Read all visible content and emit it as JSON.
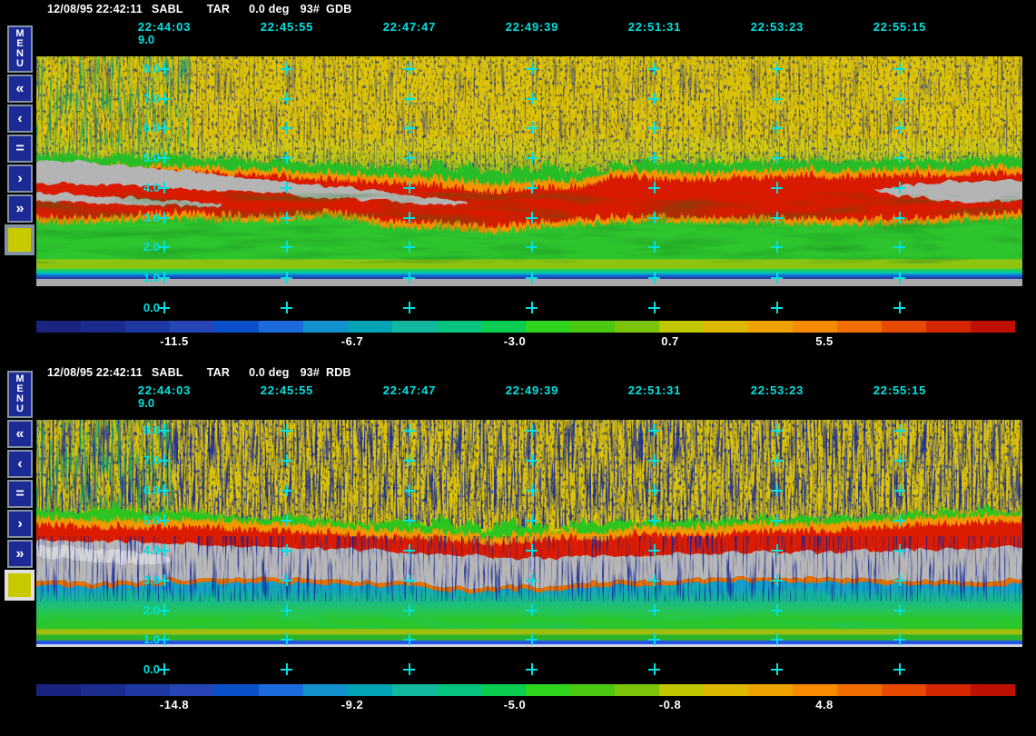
{
  "window": {
    "background": "#000000"
  },
  "grid_cross_color": "#00E0E0",
  "panels": [
    {
      "header": {
        "datetime": "12/08/95 22:42:11",
        "instrument": "SABL",
        "mode": "TAR",
        "angle": "0.0 deg",
        "shots": "93#",
        "channel": "GDB"
      },
      "time_labels": [
        "22:44:03",
        "22:45:55",
        "22:47:47",
        "22:49:39",
        "22:51:31",
        "22:53:23",
        "22:55:15"
      ],
      "altitude_top": "9.0",
      "altitude_labels": [
        "8.0",
        "7.0",
        "6.0",
        "5.0",
        "4.0",
        "3.0",
        "2.0",
        "1.0",
        "0.0"
      ],
      "sidebar": {
        "menu": "MENU",
        "rewind": "«",
        "back": "‹",
        "pause": "=",
        "forward": "›",
        "fast_forward": "»",
        "swatch_color": "#C9C900",
        "swatch_border": "#8493A4"
      },
      "colorbar": {
        "tick_labels": [
          "-11.5",
          "-6.7",
          "-3.0",
          "0.7",
          "5.5"
        ],
        "segments": [
          "#1A2380",
          "#1B2C8E",
          "#1D38A2",
          "#2644B4",
          "#0A50C8",
          "#1C6ADC",
          "#1292CC",
          "#02A4B6",
          "#12B89E",
          "#04C47E",
          "#0ACC50",
          "#2ED41E",
          "#4CC812",
          "#7CC40A",
          "#C0C600",
          "#DCB800",
          "#EEA200",
          "#F68A00",
          "#F06E00",
          "#E64A00",
          "#D42600",
          "#BE1000"
        ]
      }
    },
    {
      "header": {
        "datetime": "12/08/95 22:42:11",
        "instrument": "SABL",
        "mode": "TAR",
        "angle": "0.0 deg",
        "shots": "93#",
        "channel": "RDB"
      },
      "time_labels": [
        "22:44:03",
        "22:45:55",
        "22:47:47",
        "22:49:39",
        "22:51:31",
        "22:53:23",
        "22:55:15"
      ],
      "altitude_top": "9.0",
      "altitude_labels": [
        "8.0",
        "7.0",
        "6.0",
        "5.0",
        "4.0",
        "3.0",
        "2.0",
        "1.0",
        "0.0"
      ],
      "sidebar": {
        "menu": "MENU",
        "rewind": "«",
        "back": "‹",
        "pause": "=",
        "forward": "›",
        "fast_forward": "»",
        "swatch_color": "#C9C900",
        "swatch_border": "#E0E0E0"
      },
      "colorbar": {
        "tick_labels": [
          "-14.8",
          "-9.2",
          "-5.0",
          "-0.8",
          "4.8"
        ],
        "segments": [
          "#1A2380",
          "#1B2C8E",
          "#1D38A2",
          "#2644B4",
          "#0A50C8",
          "#1C6ADC",
          "#1292CC",
          "#02A4B6",
          "#12B89E",
          "#04C47E",
          "#0ACC50",
          "#2ED41E",
          "#4CC812",
          "#7CC40A",
          "#C0C600",
          "#DCB800",
          "#EEA200",
          "#F68A00",
          "#F06E00",
          "#E64A00",
          "#D42600",
          "#BE1000"
        ]
      }
    }
  ],
  "chart_data": [
    {
      "type": "heatmap",
      "channel": "GDB",
      "x_ticks": [
        "22:44:03",
        "22:45:55",
        "22:47:47",
        "22:49:39",
        "22:51:31",
        "22:53:23",
        "22:55:15"
      ],
      "y_ticks_km": [
        "9.0",
        "8.0",
        "7.0",
        "6.0",
        "5.0",
        "4.0",
        "3.0",
        "2.0",
        "1.0",
        "0.0"
      ],
      "colorbar_ticks": [
        -11.5,
        -6.7,
        -3.0,
        0.7,
        5.5
      ],
      "legend_position": "bottom"
    },
    {
      "type": "heatmap",
      "channel": "RDB",
      "x_ticks": [
        "22:44:03",
        "22:45:55",
        "22:47:47",
        "22:49:39",
        "22:51:31",
        "22:53:23",
        "22:55:15"
      ],
      "y_ticks_km": [
        "9.0",
        "8.0",
        "7.0",
        "6.0",
        "5.0",
        "4.0",
        "3.0",
        "2.0",
        "1.0",
        "0.0"
      ],
      "colorbar_ticks": [
        -14.8,
        -9.2,
        -5.0,
        -0.8,
        4.8
      ],
      "legend_position": "bottom"
    }
  ]
}
